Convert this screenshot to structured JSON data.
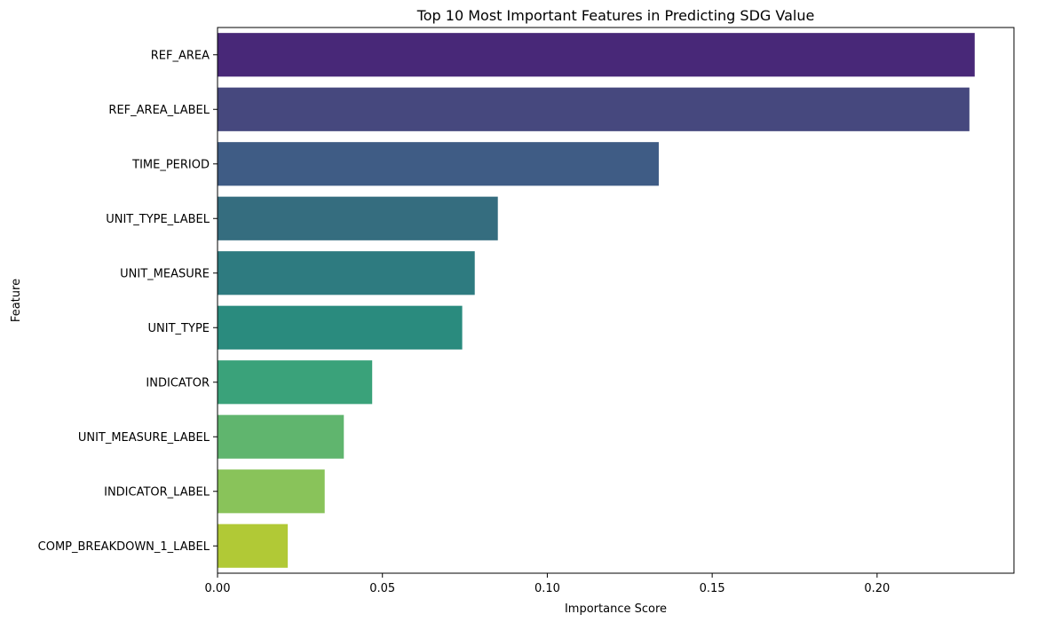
{
  "chart_data": {
    "type": "bar",
    "orientation": "horizontal",
    "title": "Top 10 Most Important Features in Predicting SDG Value",
    "xlabel": "Importance Score",
    "ylabel": "Feature",
    "categories": [
      "REF_AREA",
      "REF_AREA_LABEL",
      "TIME_PERIOD",
      "UNIT_TYPE_LABEL",
      "UNIT_MEASURE",
      "UNIT_TYPE",
      "INDICATOR",
      "UNIT_MEASURE_LABEL",
      "INDICATOR_LABEL",
      "COMP_BREAKDOWN_1_LABEL"
    ],
    "values": [
      0.2296,
      0.228,
      0.1338,
      0.085,
      0.078,
      0.0742,
      0.0469,
      0.0383,
      0.0325,
      0.0213
    ],
    "colors": [
      "#482878",
      "#46487e",
      "#3f5c85",
      "#356d7f",
      "#2e7b80",
      "#2a8b7e",
      "#3aa27a",
      "#60b56e",
      "#89c35a",
      "#b1c936"
    ],
    "xlim": [
      0,
      0.2415
    ],
    "xticks": [
      0.0,
      0.05,
      0.1,
      0.15,
      0.2
    ],
    "xtick_labels": [
      "0.00",
      "0.05",
      "0.10",
      "0.15",
      "0.20"
    ],
    "grid": false,
    "legend": "none"
  }
}
